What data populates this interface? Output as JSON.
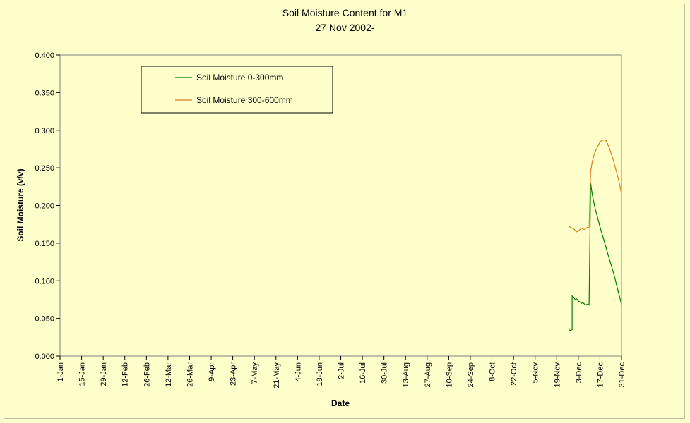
{
  "chart_data": {
    "type": "line",
    "title": "Soil Moisture Content for M1",
    "subtitle": "27 Nov 2002-",
    "xlabel": "Date",
    "ylabel": "Soil Moisture (v/v)",
    "ylim": [
      0,
      0.4
    ],
    "yticks": [
      "0.000",
      "0.050",
      "0.100",
      "0.150",
      "0.200",
      "0.250",
      "0.300",
      "0.350",
      "0.400"
    ],
    "xlim": [
      "1-Jan",
      "31-Dec"
    ],
    "xticks": [
      "1-Jan",
      "15-Jan",
      "29-Jan",
      "12-Feb",
      "26-Feb",
      "12-Mar",
      "26-Mar",
      "9-Apr",
      "23-Apr",
      "7-May",
      "21-May",
      "4-Jun",
      "18-Jun",
      "2-Jul",
      "16-Jul",
      "30-Jul",
      "13-Aug",
      "27-Aug",
      "10-Sep",
      "24-Sep",
      "8-Oct",
      "22-Oct",
      "5-Nov",
      "19-Nov",
      "3-Dec",
      "17-Dec",
      "31-Dec"
    ],
    "grid": false,
    "legend_position": "top-left",
    "series": [
      {
        "name": "Soil Moisture 0-300mm",
        "color": "#008000",
        "x": [
          "27-Nov",
          "27-Nov",
          "28-Nov",
          "29-Nov",
          "29-Nov",
          "30-Nov",
          "1-Dec",
          "2-Dec",
          "3-Dec",
          "4-Dec",
          "5-Dec",
          "6-Dec",
          "7-Dec",
          "8-Dec",
          "9-Dec",
          "10-Dec",
          "11-Dec",
          "12-Dec",
          "13-Dec",
          "14-Dec",
          "15-Dec",
          "16-Dec",
          "17-Dec",
          "18-Dec",
          "19-Dec",
          "20-Dec",
          "21-Dec",
          "22-Dec",
          "23-Dec",
          "24-Dec",
          "25-Dec",
          "26-Dec",
          "27-Dec",
          "28-Dec",
          "29-Dec",
          "30-Dec",
          "31-Dec"
        ],
        "y": [
          0.037,
          0.035,
          0.034,
          0.035,
          0.08,
          0.078,
          0.075,
          0.076,
          0.073,
          0.072,
          0.07,
          0.071,
          0.069,
          0.068,
          0.069,
          0.068,
          0.23,
          0.215,
          0.205,
          0.195,
          0.188,
          0.18,
          0.172,
          0.165,
          0.158,
          0.151,
          0.144,
          0.137,
          0.13,
          0.123,
          0.116,
          0.109,
          0.101,
          0.093,
          0.085,
          0.077,
          0.068
        ]
      },
      {
        "name": "Soil Moisture 300-600mm",
        "color": "#e07b20",
        "x": [
          "27-Nov",
          "28-Nov",
          "29-Nov",
          "30-Nov",
          "1-Dec",
          "2-Dec",
          "3-Dec",
          "4-Dec",
          "5-Dec",
          "6-Dec",
          "7-Dec",
          "8-Dec",
          "9-Dec",
          "10-Dec",
          "11-Dec",
          "12-Dec",
          "13-Dec",
          "14-Dec",
          "15-Dec",
          "16-Dec",
          "17-Dec",
          "18-Dec",
          "19-Dec",
          "20-Dec",
          "21-Dec",
          "22-Dec",
          "23-Dec",
          "24-Dec",
          "25-Dec",
          "26-Dec",
          "27-Dec",
          "28-Dec",
          "29-Dec",
          "30-Dec",
          "31-Dec"
        ],
        "y": [
          0.172,
          0.171,
          0.17,
          0.169,
          0.167,
          0.165,
          0.166,
          0.168,
          0.17,
          0.169,
          0.168,
          0.17,
          0.171,
          0.17,
          0.245,
          0.258,
          0.266,
          0.272,
          0.276,
          0.28,
          0.284,
          0.286,
          0.287,
          0.287,
          0.286,
          0.282,
          0.277,
          0.271,
          0.265,
          0.258,
          0.25,
          0.243,
          0.235,
          0.226,
          0.215
        ]
      }
    ]
  }
}
